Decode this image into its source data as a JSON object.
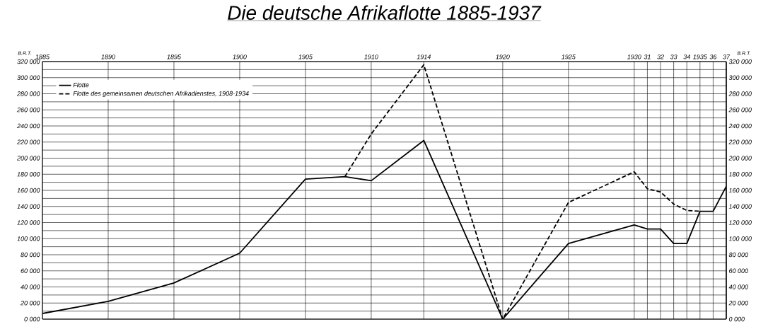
{
  "chart_data": {
    "type": "line",
    "title": "Die deutsche Afrikaflotte 1885-1937",
    "ylabel": "B.R.T.",
    "y2label": "B.R.T.",
    "xlim": [
      1885,
      1937
    ],
    "xticks": [
      1885,
      1890,
      1895,
      1900,
      1905,
      1910,
      1914,
      1920,
      1925,
      1930,
      {
        "value": 1931,
        "label": "31"
      },
      {
        "value": 1932,
        "label": "32"
      },
      {
        "value": 1933,
        "label": "33"
      },
      {
        "value": 1934,
        "label": "34"
      },
      1935,
      {
        "value": 1936,
        "label": "36"
      },
      {
        "value": 1937,
        "label": "37"
      }
    ],
    "ylim": [
      0,
      320000
    ],
    "yticks": [
      {
        "value": 0,
        "label": "0 000"
      },
      {
        "value": 10000,
        "label": null
      },
      {
        "value": 20000,
        "label": "20 000"
      },
      {
        "value": 30000,
        "label": null
      },
      {
        "value": 40000,
        "label": "40 000"
      },
      {
        "value": 50000,
        "label": null
      },
      {
        "value": 60000,
        "label": "60 000"
      },
      {
        "value": 70000,
        "label": null
      },
      {
        "value": 80000,
        "label": "80 000"
      },
      {
        "value": 90000,
        "label": null
      },
      {
        "value": 100000,
        "label": "100 000"
      },
      {
        "value": 110000,
        "label": null
      },
      {
        "value": 120000,
        "label": "120 000"
      },
      {
        "value": 130000,
        "label": null
      },
      {
        "value": 140000,
        "label": "140 000"
      },
      {
        "value": 150000,
        "label": null
      },
      {
        "value": 160000,
        "label": "160 000"
      },
      {
        "value": 170000,
        "label": null
      },
      {
        "value": 180000,
        "label": "180 000"
      },
      {
        "value": 190000,
        "label": null
      },
      {
        "value": 200000,
        "label": "200 000"
      },
      {
        "value": 210000,
        "label": null
      },
      {
        "value": 220000,
        "label": "220 000"
      },
      {
        "value": 230000,
        "label": null
      },
      {
        "value": 240000,
        "label": "240 000"
      },
      {
        "value": 250000,
        "label": null
      },
      {
        "value": 260000,
        "label": "260 000"
      },
      {
        "value": 270000,
        "label": null
      },
      {
        "value": 280000,
        "label": "280 000"
      },
      {
        "value": 290000,
        "label": null
      },
      {
        "value": 300000,
        "label": "300 000"
      },
      {
        "value": 310000,
        "label": null
      },
      {
        "value": 320000,
        "label": "320 000"
      }
    ],
    "y2lim": [
      0,
      320000
    ],
    "y2ticks": [
      {
        "value": 0,
        "label": "0 000"
      },
      {
        "value": 10000,
        "label": null
      },
      {
        "value": 20000,
        "label": "20 000"
      },
      {
        "value": 30000,
        "label": null
      },
      {
        "value": 40000,
        "label": "40 000"
      },
      {
        "value": 50000,
        "label": null
      },
      {
        "value": 60000,
        "label": "60 000"
      },
      {
        "value": 70000,
        "label": null
      },
      {
        "value": 80000,
        "label": "80 000"
      },
      {
        "value": 90000,
        "label": null
      },
      {
        "value": 100000,
        "label": "100 000"
      },
      {
        "value": 110000,
        "label": null
      },
      {
        "value": 120000,
        "label": "120 000"
      },
      {
        "value": 130000,
        "label": null
      },
      {
        "value": 140000,
        "label": "140 000"
      },
      {
        "value": 150000,
        "label": null
      },
      {
        "value": 160000,
        "label": "160 000"
      },
      {
        "value": 170000,
        "label": null
      },
      {
        "value": 180000,
        "label": "180 000"
      },
      {
        "value": 190000,
        "label": null
      },
      {
        "value": 200000,
        "label": "200 000"
      },
      {
        "value": 210000,
        "label": null
      },
      {
        "value": 220000,
        "label": "220 000"
      },
      {
        "value": 230000,
        "label": null
      },
      {
        "value": 240000,
        "label": "240 000"
      },
      {
        "value": 250000,
        "label": null
      },
      {
        "value": 260000,
        "label": "260 000"
      },
      {
        "value": 270000,
        "label": null
      },
      {
        "value": 280000,
        "label": "280 000"
      },
      {
        "value": 290000,
        "label": null
      },
      {
        "value": 300000,
        "label": "300 000"
      },
      {
        "value": 310000,
        "label": null
      },
      {
        "value": 320000,
        "label": "320 000"
      }
    ],
    "grid": true,
    "legend": "top left",
    "marker": "none",
    "series": [
      {
        "name": "Flotte",
        "color": "#000000",
        "line_style": "solid",
        "x": [
          1885,
          1890,
          1895,
          1900,
          1905,
          1908,
          1910,
          1914,
          1920,
          1925,
          1930,
          1931,
          1932,
          1933,
          1934,
          1935,
          1936,
          1937
        ],
        "values": [
          7000,
          22000,
          45000,
          82000,
          174000,
          177000,
          172000,
          222000,
          0,
          94000,
          117000,
          112000,
          112000,
          94000,
          94000,
          134000,
          134000,
          165000
        ]
      },
      {
        "name": "Flotte des gemeinsamen deutschen Afrikadienstes, 1908-1934",
        "color": "#000000",
        "line_style": "dashed",
        "x": [
          1908,
          1910,
          1914,
          1920,
          1925,
          1930,
          1931,
          1932,
          1933,
          1934,
          1935
        ],
        "values": [
          177000,
          230000,
          316000,
          0,
          145000,
          183000,
          162000,
          158000,
          143000,
          135000,
          134000
        ]
      }
    ]
  }
}
